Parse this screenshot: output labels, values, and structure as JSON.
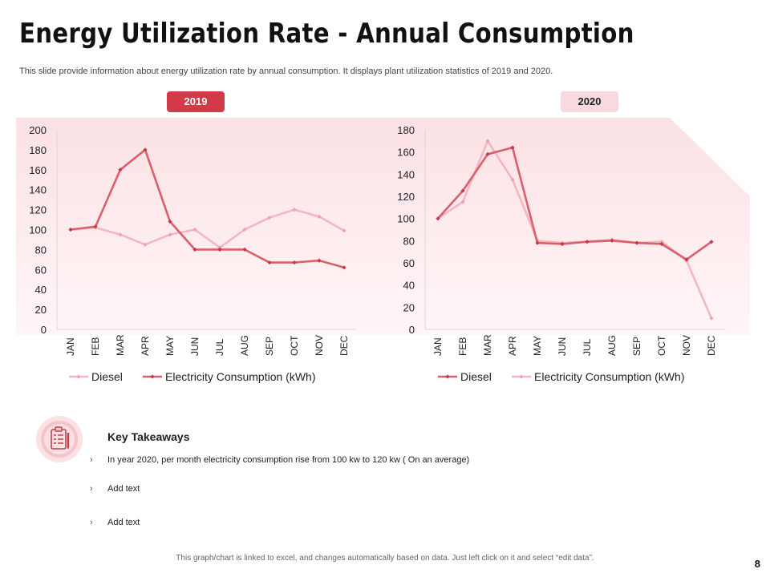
{
  "header": {
    "title": "Energy Utilization Rate - Annual Consumption",
    "subtitle": "This slide provide information about energy utilization rate by annual consumption. It displays plant utilization statistics of 2019 and 2020."
  },
  "colors": {
    "accent": "#d23a48",
    "electricity": "#d9606c",
    "diesel": "#f4b6bf",
    "panel": "#fce7ea",
    "badge_2020": "#f8d9dd"
  },
  "chart_data": [
    {
      "type": "line",
      "badge": "2019",
      "categories": [
        "JAN",
        "FEB",
        "MAR",
        "APR",
        "MAY",
        "JUN",
        "JUL",
        "AUG",
        "SEP",
        "OCT",
        "NOV",
        "DEC"
      ],
      "ylim": [
        0,
        200
      ],
      "yticks": [
        0,
        20,
        40,
        60,
        80,
        100,
        120,
        140,
        160,
        180,
        200
      ],
      "series": [
        {
          "name": "Diesel",
          "color": "#f4b6bf",
          "values": [
            100,
            102,
            95,
            85,
            95,
            100,
            82,
            100,
            112,
            120,
            113,
            99
          ]
        },
        {
          "name": "Electricity Consumption (kWh)",
          "color": "#d9606c",
          "values": [
            100,
            103,
            160,
            180,
            108,
            80,
            80,
            80,
            67,
            67,
            69,
            62
          ]
        }
      ],
      "legend": [
        "Diesel",
        "Electricity Consumption (kWh)"
      ]
    },
    {
      "type": "line",
      "badge": "2020",
      "categories": [
        "JAN",
        "FEB",
        "MAR",
        "APR",
        "MAY",
        "JUN",
        "JUL",
        "AUG",
        "SEP",
        "OCT",
        "NOV",
        "DEC"
      ],
      "ylim": [
        0,
        180
      ],
      "yticks": [
        0,
        20,
        40,
        60,
        80,
        100,
        120,
        140,
        160,
        180
      ],
      "series": [
        {
          "name": "Diesel",
          "color": "#d9606c",
          "values": [
            100,
            125,
            158,
            164,
            78,
            77,
            79,
            80,
            78,
            77,
            63,
            79
          ]
        },
        {
          "name": "Electricity Consumption (kWh)",
          "color": "#f4b6bf",
          "values": [
            100,
            115,
            170,
            135,
            80,
            78,
            79,
            81,
            78,
            79,
            62,
            10
          ]
        }
      ],
      "legend": [
        "Diesel",
        "Electricity Consumption (kWh)"
      ]
    }
  ],
  "takeaways": {
    "title": "Key Takeaways",
    "chevron": "›",
    "items": [
      "In year 2020, per month electricity consumption rise from 100 kw to 120 kw ( On an average)",
      "Add text",
      "Add text"
    ]
  },
  "footer": {
    "note": "This graph/chart is linked to excel, and changes automatically based on data. Just left click on it and select “edit data”.",
    "page_number": "8"
  }
}
